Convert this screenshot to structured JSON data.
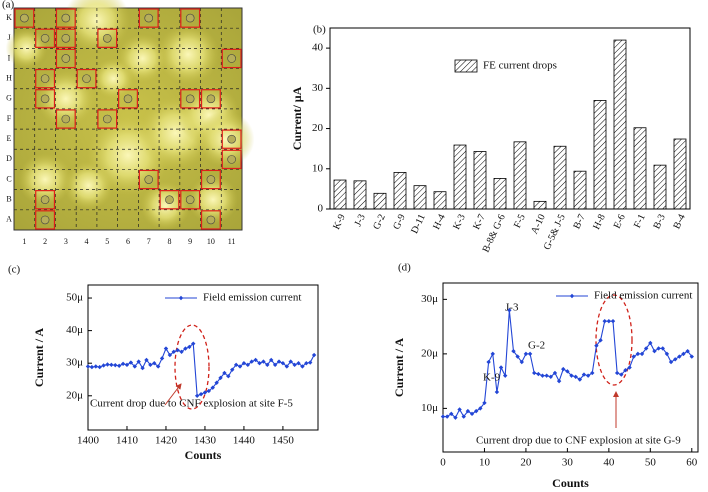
{
  "micrograph": {
    "label": "(a)",
    "row_labels": [
      "K",
      "J",
      "I",
      "H",
      "G",
      "F",
      "E",
      "D",
      "C",
      "B",
      "A"
    ],
    "column_labels": [
      "1",
      "2",
      "3",
      "4",
      "5",
      "6",
      "7",
      "8",
      "9",
      "10",
      "11"
    ]
  },
  "chart_data": [
    {
      "type": "bar",
      "label": "(b)",
      "categories": [
        "K-9",
        "J-3",
        "G-2",
        "G-9",
        "D-11",
        "H-4",
        "K-3",
        "K-7",
        "B-8& G-6",
        "F-5",
        "A-10",
        "G-5& J-5",
        "B-7",
        "H-8",
        "E-6",
        "F-1",
        "B-3",
        "B-4"
      ],
      "series": [
        {
          "name": "FE current drops",
          "color": "#000000",
          "values": [
            7.2,
            7.0,
            3.9,
            9.1,
            5.8,
            4.3,
            15.9,
            14.3,
            7.6,
            16.7,
            1.9,
            15.6,
            9.4,
            27,
            42,
            20.2,
            10.9,
            17.4
          ]
        }
      ],
      "y_label": "Current/ μA",
      "ylim": [
        0,
        45
      ],
      "yticks": [
        0,
        10,
        20,
        30,
        40
      ]
    },
    {
      "type": "line",
      "label": "(c)",
      "x": [
        1400,
        1401,
        1402,
        1403,
        1404,
        1405,
        1406,
        1407,
        1408,
        1409,
        1410,
        1411,
        1412,
        1413,
        1414,
        1415,
        1416,
        1417,
        1418,
        1419,
        1420,
        1421,
        1422,
        1423,
        1424,
        1425,
        1426,
        1427,
        1428,
        1429,
        1430,
        1431,
        1432,
        1433,
        1434,
        1435,
        1436,
        1437,
        1438,
        1439,
        1440,
        1441,
        1442,
        1443,
        1444,
        1445,
        1446,
        1447,
        1448,
        1449,
        1450,
        1451,
        1452,
        1453,
        1454,
        1455,
        1456,
        1457,
        1458
      ],
      "series": [
        {
          "name": "Field emission current",
          "color": "#2346d6",
          "values": [
            2.9e-05,
            2.88e-05,
            2.9e-05,
            2.88e-05,
            2.93e-05,
            2.96e-05,
            2.95e-05,
            2.94e-05,
            2.92e-05,
            2.98e-05,
            2.95e-05,
            3.02e-05,
            2.9e-05,
            3.05e-05,
            2.85e-05,
            3.1e-05,
            2.95e-05,
            3e-05,
            2.9e-05,
            3.15e-05,
            3.45e-05,
            3.25e-05,
            3.35e-05,
            3.4e-05,
            3.35e-05,
            3.45e-05,
            3.5e-05,
            3.6e-05,
            2e-05,
            2.05e-05,
            2.1e-05,
            2.15e-05,
            2.25e-05,
            2.4e-05,
            2.55e-05,
            2.7e-05,
            2.6e-05,
            2.8e-05,
            2.95e-05,
            2.9e-05,
            3e-05,
            2.95e-05,
            3.05e-05,
            3.1e-05,
            3e-05,
            3.05e-05,
            2.95e-05,
            3.1e-05,
            2.95e-05,
            3.05e-05,
            3e-05,
            2.9e-05,
            3.05e-05,
            2.95e-05,
            3e-05,
            2.9e-05,
            3e-05,
            3.02e-05,
            3.25e-05
          ]
        }
      ],
      "x_label": "Counts",
      "y_label": "Current / A",
      "xlim": [
        1400,
        1459
      ],
      "xticks": [
        1400,
        1410,
        1420,
        1430,
        1440,
        1450
      ],
      "ylim": [
        9.5e-06,
        5.4e-05
      ],
      "yticks": [
        {
          "value": 2e-05,
          "label": "20μ"
        },
        {
          "value": 3e-05,
          "label": "30μ"
        },
        {
          "value": 4e-05,
          "label": "40μ"
        },
        {
          "value": 5e-05,
          "label": "50μ"
        }
      ],
      "annotations": [
        "Current drop due to CNF explosion at site F-5"
      ]
    },
    {
      "type": "line",
      "label": "(d)",
      "x": [
        0,
        1,
        2,
        3,
        4,
        5,
        6,
        7,
        8,
        9,
        10,
        11,
        12,
        13,
        14,
        15,
        16,
        17,
        18,
        19,
        20,
        21,
        22,
        23,
        24,
        25,
        26,
        27,
        28,
        29,
        30,
        31,
        32,
        33,
        34,
        35,
        36,
        37,
        38,
        39,
        40,
        41,
        42,
        43,
        44,
        45,
        46,
        47,
        48,
        49,
        50,
        51,
        52,
        53,
        54,
        55,
        56,
        57,
        58,
        59,
        60
      ],
      "series": [
        {
          "name": "Field emission current",
          "color": "#2346d6",
          "values": [
            8.5e-06,
            8.5e-06,
            9e-06,
            8.3e-06,
            9.8e-06,
            8.5e-06,
            9.5e-06,
            9e-06,
            9.5e-06,
            1e-05,
            1.1e-05,
            1.85e-05,
            2e-05,
            1.3e-05,
            1.75e-05,
            1.6e-05,
            2.8e-05,
            2.05e-05,
            1.95e-05,
            1.85e-05,
            2e-05,
            2e-05,
            1.65e-05,
            1.63e-05,
            1.6e-05,
            1.6e-05,
            1.58e-05,
            1.65e-05,
            1.5e-05,
            1.72e-05,
            1.68e-05,
            1.6e-05,
            1.58e-05,
            1.53e-05,
            1.62e-05,
            1.6e-05,
            1.65e-05,
            2.15e-05,
            2.25e-05,
            2.6e-05,
            2.6e-05,
            2.6e-05,
            1.65e-05,
            1.62e-05,
            1.7e-05,
            1.75e-05,
            1.95e-05,
            2e-05,
            2e-05,
            2.1e-05,
            2.2e-05,
            2.05e-05,
            2.1e-05,
            2.1e-05,
            2e-05,
            1.85e-05,
            1.9e-05,
            1.95e-05,
            2e-05,
            2.05e-05,
            1.95e-05
          ]
        }
      ],
      "x_label": "Counts",
      "y_label": "Current / A",
      "xlim": [
        0,
        61.5
      ],
      "xticks": [
        0,
        10,
        20,
        30,
        40,
        50,
        60
      ],
      "ylim": [
        2e-06,
        3.3e-05
      ],
      "yticks": [
        {
          "value": 1e-05,
          "label": "10μ"
        },
        {
          "value": 2e-05,
          "label": "20μ"
        },
        {
          "value": 3e-05,
          "label": "30μ"
        }
      ],
      "annotations": [
        "K-9",
        "J-3",
        "G-2",
        "Current drop due to CNF explosion at site G-9"
      ]
    }
  ]
}
